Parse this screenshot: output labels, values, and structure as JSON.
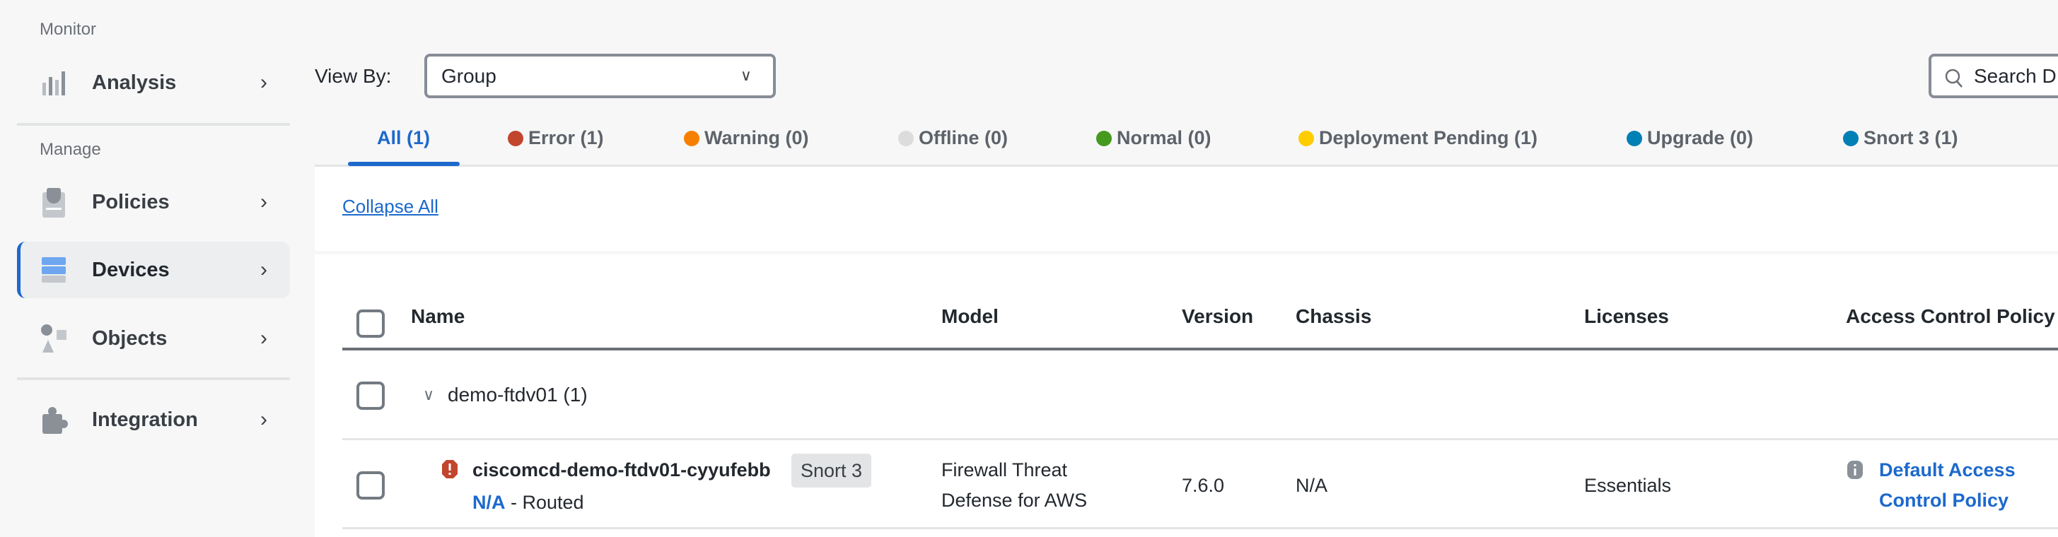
{
  "sidebar": {
    "monitor_label": "Monitor",
    "manage_label": "Manage",
    "items": [
      {
        "label": "Analysis",
        "icon": "bar-chart-icon"
      },
      {
        "label": "Policies",
        "icon": "policy-clipboard-icon"
      },
      {
        "label": "Devices",
        "icon": "server-icon",
        "selected": true
      },
      {
        "label": "Objects",
        "icon": "shapes-icon"
      },
      {
        "label": "Integration",
        "icon": "puzzle-icon"
      }
    ]
  },
  "toolbar": {
    "view_by_label": "View By:",
    "view_by_value": "Group",
    "search_placeholder": "Search D"
  },
  "tabs": [
    {
      "label": "All (1)",
      "active": true
    },
    {
      "label": "Error (1)",
      "color": "#c2452d"
    },
    {
      "label": "Warning (0)",
      "color": "#f77f00"
    },
    {
      "label": "Offline (0)",
      "color": "#dcdcdc"
    },
    {
      "label": "Normal (0)",
      "color": "#45991f"
    },
    {
      "label": "Deployment Pending (1)",
      "color": "#ffcc00"
    },
    {
      "label": "Upgrade (0)",
      "color": "#0080b5"
    },
    {
      "label": "Snort 3 (1)",
      "color": "#0080b5"
    }
  ],
  "collapse_all": "Collapse All",
  "table": {
    "columns": [
      "Name",
      "Model",
      "Version",
      "Chassis",
      "Licenses",
      "Access Control Policy"
    ],
    "group": {
      "name": "demo-ftdv01 (1)"
    },
    "rows": [
      {
        "name": "ciscomcd-demo-ftdv01-cyyufebb",
        "badge": "Snort 3",
        "ip": "N/A",
        "mode": " - Routed",
        "model_line1": "Firewall Threat",
        "model_line2": "Defense for AWS",
        "version": "7.6.0",
        "chassis": "N/A",
        "licenses": "Essentials",
        "acp_line1": "Default Access",
        "acp_line2": "Control Policy"
      }
    ]
  }
}
